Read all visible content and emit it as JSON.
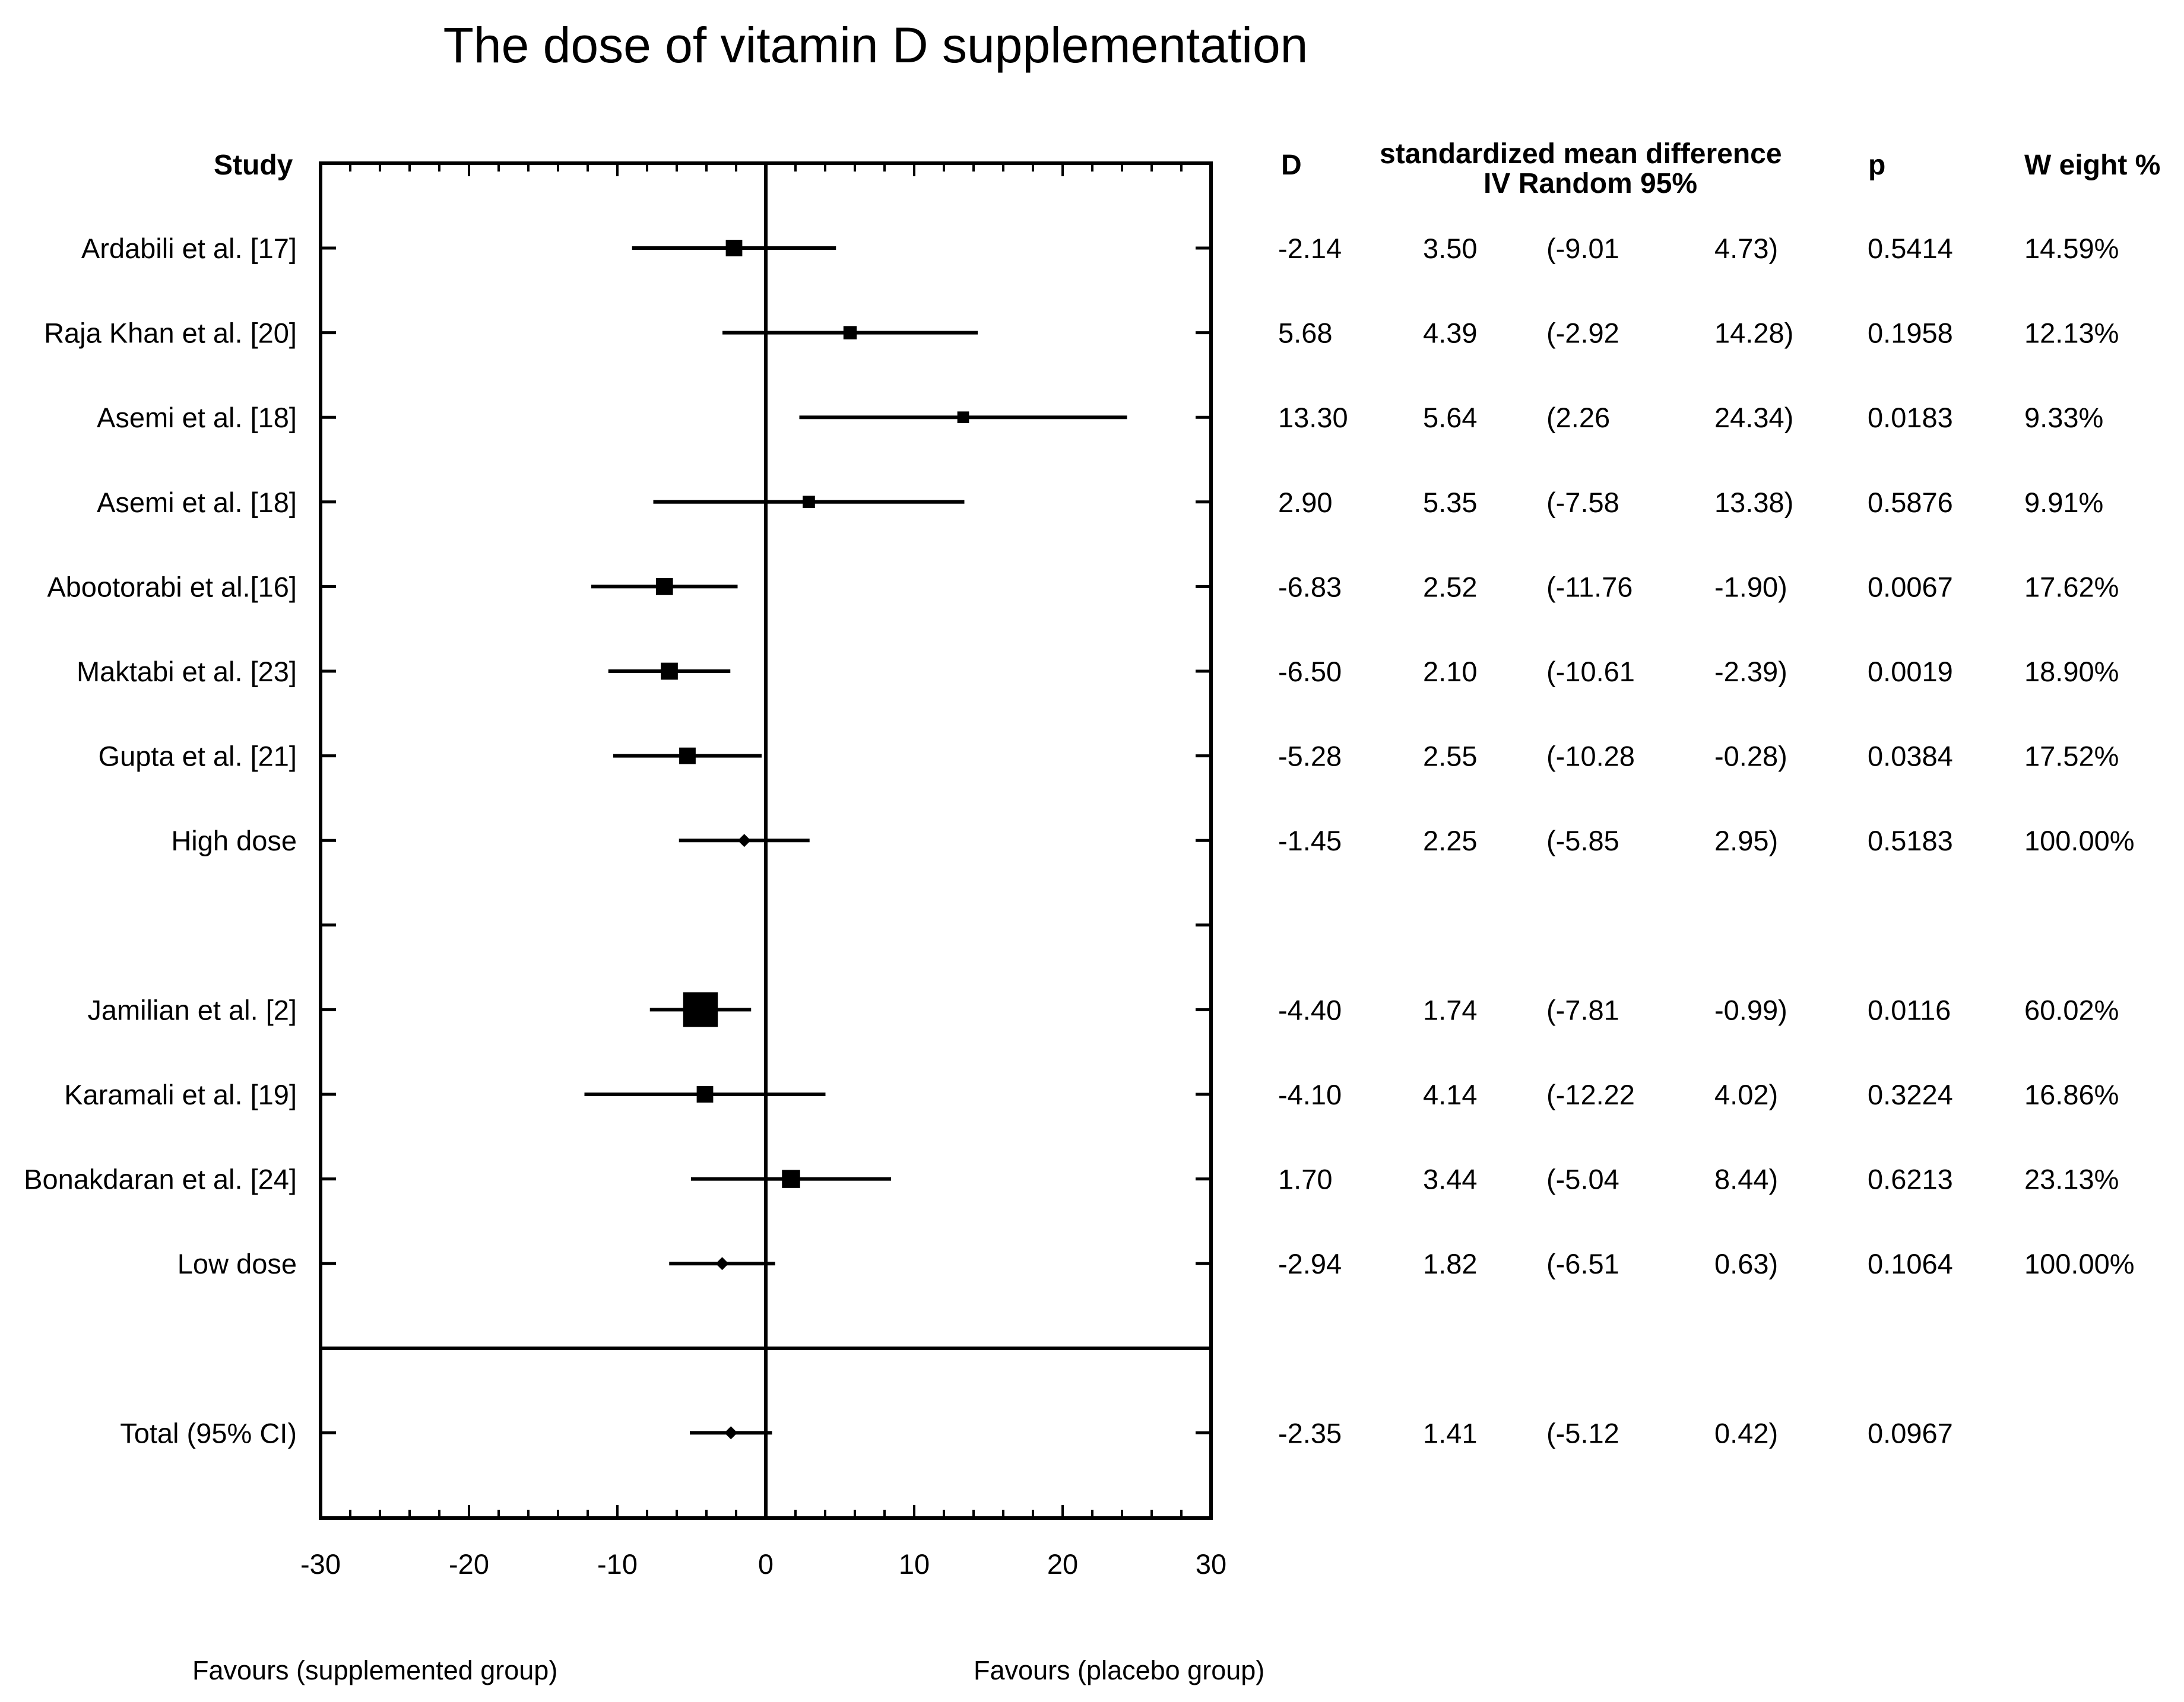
{
  "chart_data": {
    "type": "forest",
    "title": "The dose of vitamin D supplementation",
    "xlim": [
      -30,
      30
    ],
    "xticks": [
      "-30",
      "-20",
      "-10",
      "0",
      "10",
      "20",
      "30"
    ],
    "xlabel_left": "Favours (supplemented group)",
    "xlabel_right": "Favours (placebo group)",
    "headers": {
      "study": "Study",
      "d": "D",
      "smd_line1": "standardized mean difference",
      "smd_line2": "IV Random 95%",
      "p": "p",
      "weight": "W eight %"
    },
    "rows": [
      {
        "row": 0,
        "label": "Ardabili et al. [17]",
        "d": -2.14,
        "ci_low": -9.01,
        "ci_high": 4.73,
        "marker": "square",
        "size": 1.1,
        "d_text": "-2.14",
        "se_text": "3.50",
        "lo_text": "(-9.01",
        "hi_text": "4.73)",
        "p_text": "0.5414",
        "w_text": "14.59%"
      },
      {
        "row": 1,
        "label": "Raja Khan et al. [20]",
        "d": 5.68,
        "ci_low": -2.92,
        "ci_high": 14.28,
        "marker": "square",
        "size": 0.8,
        "d_text": "5.68",
        "se_text": "4.39",
        "lo_text": "(-2.92",
        "hi_text": "14.28)",
        "p_text": "0.1958",
        "w_text": "12.13%"
      },
      {
        "row": 2,
        "label": "Asemi et al. [18]",
        "d": 13.3,
        "ci_low": 2.26,
        "ci_high": 24.34,
        "marker": "square",
        "size": 0.65,
        "d_text": "13.30",
        "se_text": "5.64",
        "lo_text": "(2.26",
        "hi_text": "24.34)",
        "p_text": "0.0183",
        "w_text": "9.33%"
      },
      {
        "row": 3,
        "label": "Asemi et al. [18]",
        "d": 2.9,
        "ci_low": -7.58,
        "ci_high": 13.38,
        "marker": "square",
        "size": 0.7,
        "d_text": "2.90",
        "se_text": "5.35",
        "lo_text": "(-7.58",
        "hi_text": "13.38)",
        "p_text": "0.5876",
        "w_text": "9.91%"
      },
      {
        "row": 4,
        "label": "Abootorabi et al.[16]",
        "d": -6.83,
        "ci_low": -11.76,
        "ci_high": -1.9,
        "marker": "square",
        "size": 1.15,
        "d_text": "-6.83",
        "se_text": "2.52",
        "lo_text": "(-11.76",
        "hi_text": "-1.90)",
        "p_text": "0.0067",
        "w_text": "17.62%"
      },
      {
        "row": 5,
        "label": "Maktabi et al. [23]",
        "d": -6.5,
        "ci_low": -10.61,
        "ci_high": -2.39,
        "marker": "square",
        "size": 1.15,
        "d_text": "-6.50",
        "se_text": "2.10",
        "lo_text": "(-10.61",
        "hi_text": "-2.39)",
        "p_text": "0.0019",
        "w_text": "18.90%"
      },
      {
        "row": 6,
        "label": "Gupta et al. [21]",
        "d": -5.28,
        "ci_low": -10.28,
        "ci_high": -0.28,
        "marker": "square",
        "size": 1.1,
        "d_text": "-5.28",
        "se_text": "2.55",
        "lo_text": "(-10.28",
        "hi_text": "-0.28)",
        "p_text": "0.0384",
        "w_text": "17.52%"
      },
      {
        "row": 7,
        "label": "High dose",
        "d": -1.45,
        "ci_low": -5.85,
        "ci_high": 2.95,
        "marker": "diamond",
        "size": 1,
        "d_text": "-1.45",
        "se_text": "2.25",
        "lo_text": "(-5.85",
        "hi_text": "2.95)",
        "p_text": "0.5183",
        "w_text": "100.00%"
      },
      {
        "row": 9,
        "label": "Jamilian et al. [2]",
        "d": -4.4,
        "ci_low": -7.81,
        "ci_high": -0.99,
        "marker": "square",
        "size": 2.8,
        "d_text": "-4.40",
        "se_text": "1.74",
        "lo_text": "(-7.81",
        "hi_text": "-0.99)",
        "p_text": "0.0116",
        "w_text": "60.02%"
      },
      {
        "row": 10,
        "label": "Karamali et al. [19]",
        "d": -4.1,
        "ci_low": -12.22,
        "ci_high": 4.02,
        "marker": "square",
        "size": 1.1,
        "d_text": "-4.10",
        "se_text": "4.14",
        "lo_text": "(-12.22",
        "hi_text": "4.02)",
        "p_text": "0.3224",
        "w_text": "16.86%"
      },
      {
        "row": 11,
        "label": "Bonakdaran et al. [24]",
        "d": 1.7,
        "ci_low": -5.04,
        "ci_high": 8.44,
        "marker": "square",
        "size": 1.25,
        "d_text": "1.70",
        "se_text": "3.44",
        "lo_text": "(-5.04",
        "hi_text": "8.44)",
        "p_text": "0.6213",
        "w_text": "23.13%"
      },
      {
        "row": 12,
        "label": "Low dose",
        "d": -2.94,
        "ci_low": -6.51,
        "ci_high": 0.63,
        "marker": "diamond",
        "size": 1,
        "d_text": "-2.94",
        "se_text": "1.82",
        "lo_text": "(-6.51",
        "hi_text": "0.63)",
        "p_text": "0.1064",
        "w_text": "100.00%"
      },
      {
        "row": 14,
        "label": "Total (95% CI)",
        "d": -2.35,
        "ci_low": -5.12,
        "ci_high": 0.42,
        "marker": "diamond",
        "size": 1,
        "d_text": "-2.35",
        "se_text": "1.41",
        "lo_text": "(-5.12",
        "hi_text": "0.42)",
        "p_text": "0.0967",
        "w_text": ""
      }
    ]
  }
}
